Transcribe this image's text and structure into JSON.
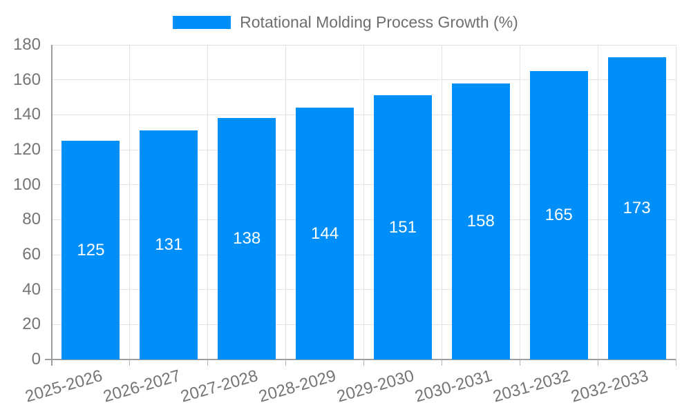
{
  "chart_data": {
    "type": "bar",
    "title": "Rotational Molding Process Growth (%)",
    "legend": {
      "label": "Rotational Molding Process Growth (%)",
      "position": "top",
      "marker": "rectangle"
    },
    "categories": [
      "2025-2026",
      "2026-2027",
      "2027-2028",
      "2028-2029",
      "2029-2030",
      "2030-2031",
      "2031-2032",
      "2032-2033"
    ],
    "values": [
      125,
      131,
      138,
      144,
      151,
      158,
      165,
      173
    ],
    "bar_value_labels": [
      "125",
      "131",
      "138",
      "144",
      "151",
      "158",
      "165",
      "173"
    ],
    "xlabel": "",
    "ylabel": "",
    "ylim": [
      0,
      180
    ],
    "ytick_step": 20,
    "yticks": [
      0,
      20,
      40,
      60,
      80,
      100,
      120,
      140,
      160,
      180
    ],
    "grid": true,
    "x_label_rotation_deg": -16,
    "colors": {
      "bar": "#008FF8",
      "bar_label_text": "#FFFFFF",
      "axis_text": "#757575",
      "legend_text": "#6E6E6E",
      "axis_line": "#9E9E9E",
      "gridline": "#E3E3E3",
      "minor_tick": "#B5B5B5",
      "background": "#FFFFFF"
    }
  }
}
